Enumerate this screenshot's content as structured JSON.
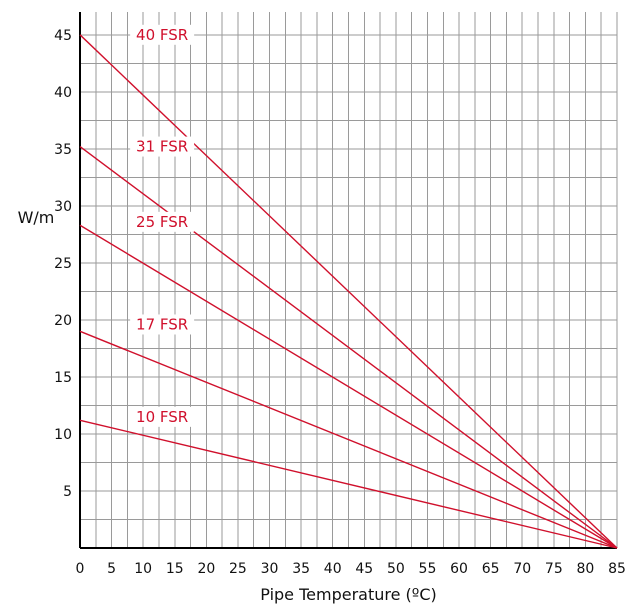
{
  "chart_data": {
    "type": "line",
    "xlabel": "Pipe Temperature (ºC)",
    "ylabel": "W/m",
    "xlim": [
      0,
      85
    ],
    "ylim": [
      0,
      47
    ],
    "x_ticks": [
      0,
      5,
      10,
      15,
      20,
      25,
      30,
      35,
      40,
      45,
      50,
      55,
      60,
      65,
      70,
      75,
      80,
      85
    ],
    "y_ticks": [
      5,
      10,
      15,
      20,
      25,
      30,
      35,
      40,
      45
    ],
    "grid_x_step": 2.5,
    "grid_y_step": 2.5,
    "grid": true,
    "series_color": "#d0102c",
    "series": [
      {
        "name": "40 FSR",
        "x": [
          0,
          85
        ],
        "y": [
          45,
          0
        ],
        "label_at": [
          13,
          45
        ]
      },
      {
        "name": "31 FSR",
        "x": [
          0,
          85
        ],
        "y": [
          35.2,
          0
        ],
        "label_at": [
          13,
          35.2
        ]
      },
      {
        "name": "25 FSR",
        "x": [
          0,
          85
        ],
        "y": [
          28.3,
          0
        ],
        "label_at": [
          13,
          28.6
        ]
      },
      {
        "name": "17 FSR",
        "x": [
          0,
          85
        ],
        "y": [
          19,
          0
        ],
        "label_at": [
          13,
          19.6
        ]
      },
      {
        "name": "10 FSR",
        "x": [
          0,
          85
        ],
        "y": [
          11.2,
          0
        ],
        "label_at": [
          13,
          11.5
        ]
      }
    ]
  }
}
